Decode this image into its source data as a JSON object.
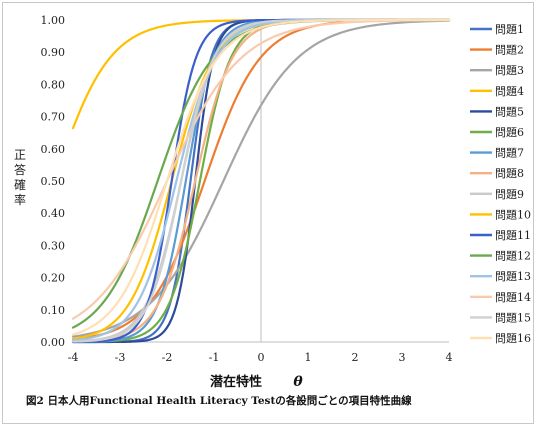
{
  "chart_data": {
    "type": "line",
    "title": "",
    "xlabel": "潜在特性",
    "xlabel_symbol": "θ",
    "ylabel_chars": [
      "正",
      "答",
      "確",
      "率"
    ],
    "caption": "図2 日本人用Functional Health Literacy Testの各設問ごとの項目特性曲線",
    "x_ticks": [
      "-4",
      "-3",
      "-2",
      "-1",
      "0",
      "1",
      "2",
      "3",
      "4"
    ],
    "y_ticks": [
      "0.00",
      "0.10",
      "0.20",
      "0.30",
      "0.40",
      "0.50",
      "0.60",
      "0.70",
      "0.80",
      "0.90",
      "1.00"
    ],
    "xlim": [
      -4,
      4
    ],
    "ylim": [
      0,
      1
    ],
    "grid": "vertical-at-zero",
    "legend_position": "right",
    "series": [
      {
        "name": "問題1",
        "color": "#4472c4",
        "a": 2.7,
        "b": -1.5
      },
      {
        "name": "問題2",
        "color": "#ed7d31",
        "a": 1.0,
        "b": -1.2
      },
      {
        "name": "問題3",
        "color": "#a5a5a5",
        "a": 0.75,
        "b": -0.8
      },
      {
        "name": "問題4",
        "color": "#ffc000",
        "a": 1.0,
        "b": -4.4
      },
      {
        "name": "問題5",
        "color": "#2e4b9b",
        "a": 3.0,
        "b": -1.4
      },
      {
        "name": "問題6",
        "color": "#70ad47",
        "a": 1.8,
        "b": -1.3
      },
      {
        "name": "問題7",
        "color": "#5b9bd5",
        "a": 2.0,
        "b": -1.6
      },
      {
        "name": "問題8",
        "color": "#f4b183",
        "a": 1.5,
        "b": -1.4
      },
      {
        "name": "問題9",
        "color": "#c9c9c9",
        "a": 1.6,
        "b": -1.7
      },
      {
        "name": "問題10",
        "color": "#ffc000",
        "a": 1.3,
        "b": -1.9
      },
      {
        "name": "問題11",
        "color": "#3a5fcd",
        "a": 2.3,
        "b": -1.9
      },
      {
        "name": "問題12",
        "color": "#6aa84f",
        "a": 1.0,
        "b": -2.2
      },
      {
        "name": "問題13",
        "color": "#9dc3e6",
        "a": 1.4,
        "b": -1.8
      },
      {
        "name": "問題14",
        "color": "#f8cbad",
        "a": 0.75,
        "b": -2.0
      },
      {
        "name": "問題15",
        "color": "#d0d0d0",
        "a": 1.7,
        "b": -1.7
      },
      {
        "name": "問題16",
        "color": "#ffe0b3",
        "a": 1.1,
        "b": -2.0
      }
    ]
  }
}
